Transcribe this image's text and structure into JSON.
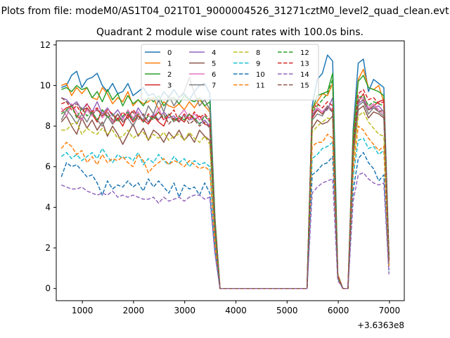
{
  "chart_data": {
    "type": "line",
    "suptitle": "Plots from file: modeM0/AS1T04_021T01_9000004526_31271cztM0_level2_quad_clean.evt",
    "title": "Quadrant 2 module wise count rates with 100.0s bins.",
    "xlabel": "",
    "ylabel": "",
    "x_offset_label": "+3.6363e8",
    "xlim": [
      490,
      7290
    ],
    "ylim": [
      -0.6,
      12.2
    ],
    "xticks": [
      1000,
      2000,
      3000,
      4000,
      5000,
      6000,
      7000
    ],
    "xtick_labels": [
      "1000",
      "2000",
      "3000",
      "4000",
      "5000",
      "6000",
      "7000"
    ],
    "yticks": [
      0,
      2,
      4,
      6,
      8,
      10,
      12
    ],
    "ytick_labels": [
      "0",
      "2",
      "4",
      "6",
      "8",
      "10",
      "12"
    ],
    "x": [
      590,
      690,
      790,
      890,
      990,
      1090,
      1190,
      1290,
      1390,
      1490,
      1590,
      1690,
      1790,
      1890,
      1990,
      2090,
      2190,
      2290,
      2390,
      2490,
      2590,
      2690,
      2790,
      2890,
      2990,
      3090,
      3190,
      3290,
      3390,
      3490,
      3590,
      3690,
      3790,
      3890,
      3990,
      4090,
      4190,
      4290,
      4390,
      4490,
      4590,
      4690,
      4790,
      4890,
      4990,
      5090,
      5190,
      5290,
      5390,
      5490,
      5590,
      5690,
      5790,
      5890,
      5990,
      6090,
      6190,
      6290,
      6390,
      6490,
      6590,
      6690,
      6790,
      6890,
      6990
    ],
    "legend": {
      "columns": 4,
      "location": "upper center"
    },
    "series": [
      {
        "name": "0",
        "color": "#1f77b4",
        "dash": "solid",
        "values": [
          9.9,
          10.0,
          10.5,
          10.7,
          9.9,
          10.3,
          10.4,
          10.6,
          10.0,
          9.7,
          10.1,
          9.6,
          9.7,
          10.1,
          9.5,
          9.7,
          9.9,
          9.5,
          9.6,
          9.2,
          9.7,
          9.4,
          9.8,
          9.4,
          9.6,
          9.3,
          9.7,
          10.0,
          10.1,
          9.6,
          3.5,
          0,
          0,
          0,
          0,
          0,
          0,
          0,
          0,
          0,
          0,
          0,
          0,
          0,
          0,
          0,
          0,
          0,
          0,
          9.0,
          10.3,
          10.6,
          11.5,
          11.2,
          0.7,
          0,
          0,
          7.8,
          11.1,
          11.3,
          9.7,
          10.3,
          10.1,
          9.9,
          1.6
        ]
      },
      {
        "name": "1",
        "color": "#ff7f0e",
        "dash": "solid",
        "values": [
          10.0,
          10.1,
          9.5,
          9.9,
          9.6,
          9.9,
          9.4,
          9.3,
          9.9,
          9.6,
          9.1,
          9.4,
          9.2,
          9.7,
          9.0,
          9.3,
          9.1,
          9.2,
          9.4,
          8.8,
          9.2,
          9.0,
          8.9,
          9.1,
          8.8,
          9.2,
          8.9,
          9.3,
          9.0,
          8.7,
          3.4,
          0,
          0,
          0,
          0,
          0,
          0,
          0,
          0,
          0,
          0,
          0,
          0,
          0,
          0,
          0,
          0,
          0,
          0,
          8.9,
          9.2,
          9.6,
          9.5,
          10.1,
          0.7,
          0,
          0,
          7.5,
          10.3,
          10.8,
          9.9,
          9.8,
          10.0,
          9.2,
          1.5
        ]
      },
      {
        "name": "2",
        "color": "#2ca02c",
        "dash": "solid",
        "values": [
          9.8,
          9.9,
          9.7,
          10.0,
          9.8,
          9.9,
          9.4,
          9.7,
          9.2,
          9.8,
          9.3,
          9.6,
          9.0,
          9.5,
          9.1,
          9.3,
          9.0,
          9.4,
          9.2,
          9.5,
          9.0,
          9.3,
          9.4,
          9.1,
          9.5,
          9.3,
          9.2,
          9.4,
          9.0,
          9.2,
          3.4,
          0,
          0,
          0,
          0,
          0,
          0,
          0,
          0,
          0,
          0,
          0,
          0,
          0,
          0,
          0,
          0,
          0,
          0,
          8.8,
          9.5,
          9.6,
          9.7,
          10.6,
          0.6,
          0,
          0,
          7.4,
          10.2,
          10.5,
          9.9,
          9.8,
          9.7,
          9.5,
          1.5
        ]
      },
      {
        "name": "3",
        "color": "#d62728",
        "dash": "solid",
        "values": [
          8.7,
          8.9,
          9.0,
          8.5,
          8.3,
          8.9,
          8.6,
          8.2,
          8.8,
          8.5,
          8.1,
          8.4,
          8.0,
          8.6,
          8.2,
          8.5,
          8.3,
          8.1,
          8.5,
          8.2,
          8.0,
          8.6,
          8.3,
          8.4,
          8.2,
          8.6,
          8.3,
          8.5,
          8.1,
          8.0,
          3.0,
          0,
          0,
          0,
          0,
          0,
          0,
          0,
          0,
          0,
          0,
          0,
          0,
          0,
          0,
          0,
          0,
          0,
          0,
          8.4,
          8.8,
          8.6,
          9.0,
          8.7,
          0.6,
          0,
          0,
          6.7,
          9.2,
          9.6,
          8.8,
          9.0,
          9.2,
          9.3,
          1.4
        ]
      },
      {
        "name": "4",
        "color": "#9467bd",
        "dash": "solid",
        "values": [
          9.4,
          9.3,
          9.0,
          9.2,
          8.8,
          9.1,
          8.7,
          9.2,
          8.6,
          8.9,
          8.5,
          8.8,
          8.4,
          8.7,
          8.3,
          8.9,
          8.5,
          8.2,
          8.6,
          8.3,
          8.7,
          8.4,
          8.5,
          8.2,
          8.6,
          8.3,
          8.4,
          8.1,
          8.3,
          8.0,
          3.0,
          0,
          0,
          0,
          0,
          0,
          0,
          0,
          0,
          0,
          0,
          0,
          0,
          0,
          0,
          0,
          0,
          0,
          0,
          8.5,
          8.9,
          8.7,
          8.8,
          9.4,
          0.6,
          0,
          0,
          6.6,
          9.1,
          9.3,
          8.8,
          8.9,
          9.0,
          8.7,
          1.4
        ]
      },
      {
        "name": "5",
        "color": "#8c564b",
        "dash": "solid",
        "values": [
          8.2,
          8.5,
          8.0,
          7.6,
          8.4,
          7.9,
          8.3,
          7.8,
          8.2,
          7.5,
          8.0,
          7.6,
          7.1,
          7.6,
          8.1,
          7.5,
          7.9,
          7.3,
          7.8,
          7.6,
          7.2,
          7.7,
          7.4,
          7.8,
          7.3,
          7.6,
          7.2,
          7.8,
          7.5,
          7.3,
          2.8,
          0,
          0,
          0,
          0,
          0,
          0,
          0,
          0,
          0,
          0,
          0,
          0,
          0,
          0,
          0,
          0,
          0,
          0,
          7.9,
          8.3,
          8.1,
          8.2,
          8.5,
          0.6,
          0,
          0,
          6.4,
          8.8,
          9.0,
          8.4,
          8.7,
          8.6,
          8.4,
          1.3
        ]
      },
      {
        "name": "6",
        "color": "#e377c2",
        "dash": "solid",
        "values": [
          8.9,
          8.5,
          9.1,
          8.7,
          8.3,
          8.8,
          8.5,
          8.9,
          8.4,
          8.7,
          8.2,
          8.6,
          8.3,
          8.8,
          8.4,
          8.7,
          8.2,
          8.5,
          8.4,
          8.9,
          8.3,
          8.6,
          8.2,
          8.5,
          8.8,
          8.4,
          8.6,
          8.3,
          8.5,
          8.2,
          3.0,
          0,
          0,
          0,
          0,
          0,
          0,
          0,
          0,
          0,
          0,
          0,
          0,
          0,
          0,
          0,
          0,
          0,
          0,
          8.6,
          8.9,
          8.7,
          9.0,
          8.8,
          0.6,
          0,
          0,
          6.8,
          9.3,
          9.4,
          8.9,
          9.1,
          8.8,
          8.6,
          1.4
        ]
      },
      {
        "name": "7",
        "color": "#7f7f7f",
        "dash": "solid",
        "values": [
          8.3,
          8.8,
          8.5,
          8.1,
          8.6,
          8.2,
          8.7,
          8.3,
          8.0,
          8.5,
          8.1,
          8.6,
          8.2,
          8.4,
          8.0,
          8.5,
          8.3,
          9.0,
          8.6,
          9.3,
          8.7,
          9.5,
          9.0,
          9.4,
          9.7,
          10.4,
          9.6,
          9.0,
          9.3,
          8.8,
          3.2,
          0,
          0,
          0,
          0,
          0,
          0,
          0,
          0,
          0,
          0,
          0,
          0,
          0,
          0,
          0,
          0,
          0,
          0,
          8.3,
          8.6,
          8.5,
          9.0,
          8.7,
          0.6,
          0,
          0,
          6.6,
          9.0,
          9.2,
          8.6,
          8.9,
          8.7,
          8.5,
          1.4
        ]
      },
      {
        "name": "8",
        "color": "#bcbd22",
        "dash": "dashed",
        "values": [
          7.8,
          7.8,
          8.1,
          8.2,
          7.6,
          7.9,
          7.7,
          7.6,
          7.9,
          7.6,
          7.8,
          7.4,
          7.5,
          7.8,
          7.4,
          7.6,
          7.7,
          7.3,
          7.6,
          7.4,
          7.7,
          7.3,
          7.5,
          7.6,
          7.3,
          7.7,
          7.4,
          7.2,
          7.5,
          7.1,
          2.7,
          0,
          0,
          0,
          0,
          0,
          0,
          0,
          0,
          0,
          0,
          0,
          0,
          0,
          0,
          0,
          0,
          0,
          0,
          7.7,
          8.0,
          8.2,
          8.4,
          8.3,
          0.6,
          0,
          0,
          6.2,
          8.5,
          8.7,
          8.2,
          7.9,
          7.6,
          7.5,
          1.2
        ]
      },
      {
        "name": "9",
        "color": "#17becf",
        "dash": "dashed",
        "values": [
          6.5,
          6.7,
          6.4,
          6.6,
          6.3,
          6.5,
          6.7,
          6.4,
          6.9,
          6.5,
          6.2,
          6.6,
          6.4,
          6.5,
          6.3,
          6.7,
          6.1,
          6.4,
          6.2,
          6.6,
          6.3,
          6.1,
          6.5,
          6.2,
          6.4,
          6.0,
          6.3,
          6.1,
          6.2,
          6.0,
          2.2,
          0,
          0,
          0,
          0,
          0,
          0,
          0,
          0,
          0,
          0,
          0,
          0,
          0,
          0,
          0,
          0,
          0,
          0,
          6.4,
          6.6,
          6.9,
          7.0,
          7.2,
          0.5,
          0,
          0,
          5.5,
          7.3,
          7.4,
          6.9,
          7.0,
          6.6,
          6.8,
          1.1
        ]
      },
      {
        "name": "10",
        "color": "#1f77b4",
        "dash": "dashed",
        "values": [
          5.5,
          6.2,
          6.0,
          6.1,
          5.8,
          5.5,
          5.6,
          5.2,
          4.6,
          5.3,
          4.9,
          5.1,
          5.0,
          5.3,
          5.0,
          5.2,
          4.8,
          5.4,
          5.0,
          5.3,
          5.0,
          4.7,
          5.2,
          4.5,
          5.1,
          4.9,
          5.0,
          4.6,
          5.2,
          4.7,
          1.8,
          0,
          0,
          0,
          0,
          0,
          0,
          0,
          0,
          0,
          0,
          0,
          0,
          0,
          0,
          0,
          0,
          0,
          0,
          5.6,
          5.8,
          6.1,
          6.2,
          6.5,
          0.5,
          0,
          0,
          4.8,
          6.4,
          6.7,
          6.2,
          5.9,
          5.3,
          5.6,
          0.9
        ]
      },
      {
        "name": "11",
        "color": "#ff7f0e",
        "dash": "dashed",
        "values": [
          6.9,
          7.2,
          7.0,
          6.6,
          6.8,
          6.2,
          6.5,
          6.1,
          6.6,
          6.2,
          6.4,
          6.3,
          6.5,
          6.2,
          6.0,
          6.6,
          6.3,
          5.7,
          6.0,
          6.2,
          6.4,
          6.1,
          6.3,
          6.2,
          6.0,
          6.3,
          6.1,
          5.9,
          6.0,
          5.8,
          2.2,
          0,
          0,
          0,
          0,
          0,
          0,
          0,
          0,
          0,
          0,
          0,
          0,
          0,
          0,
          0,
          0,
          0,
          0,
          7.0,
          7.2,
          7.2,
          7.6,
          7.4,
          0.5,
          0,
          0,
          5.8,
          8.0,
          7.8,
          7.4,
          7.1,
          6.8,
          7.0,
          1.1
        ]
      },
      {
        "name": "12",
        "color": "#2ca02c",
        "dash": "dashed",
        "values": [
          8.6,
          8.8,
          9.0,
          8.4,
          8.9,
          8.5,
          8.7,
          8.3,
          8.8,
          8.4,
          8.6,
          8.2,
          8.5,
          8.7,
          8.3,
          8.6,
          8.2,
          8.5,
          8.3,
          8.7,
          8.4,
          8.6,
          8.2,
          8.5,
          8.3,
          8.6,
          8.4,
          8.1,
          8.5,
          8.2,
          3.1,
          0,
          0,
          0,
          0,
          0,
          0,
          0,
          0,
          0,
          0,
          0,
          0,
          0,
          0,
          0,
          0,
          0,
          0,
          8.7,
          9.0,
          9.3,
          9.6,
          10.3,
          0.6,
          0,
          0,
          6.9,
          9.4,
          9.5,
          9.0,
          9.2,
          9.1,
          9.0,
          1.4
        ]
      },
      {
        "name": "13",
        "color": "#d62728",
        "dash": "dashed",
        "values": [
          9.1,
          9.2,
          8.8,
          9.0,
          8.6,
          9.1,
          8.7,
          8.9,
          8.5,
          8.8,
          8.6,
          8.3,
          8.7,
          8.4,
          8.8,
          8.5,
          8.2,
          8.6,
          8.4,
          8.7,
          8.3,
          8.5,
          8.8,
          8.2,
          8.6,
          8.3,
          8.7,
          8.4,
          8.6,
          8.3,
          3.1,
          0,
          0,
          0,
          0,
          0,
          0,
          0,
          0,
          0,
          0,
          0,
          0,
          0,
          0,
          0,
          0,
          0,
          0,
          8.8,
          9.1,
          8.9,
          9.2,
          9.0,
          0.6,
          0,
          0,
          7.0,
          9.6,
          9.8,
          9.3,
          9.4,
          9.1,
          9.2,
          1.4
        ]
      },
      {
        "name": "14",
        "color": "#9467bd",
        "dash": "dashed",
        "values": [
          5.1,
          5.0,
          4.9,
          4.9,
          5.0,
          4.8,
          4.7,
          4.6,
          4.7,
          4.6,
          4.8,
          4.5,
          4.6,
          4.5,
          4.6,
          4.5,
          4.4,
          4.4,
          4.5,
          4.2,
          4.5,
          4.3,
          4.4,
          4.5,
          4.3,
          4.5,
          4.6,
          4.6,
          4.4,
          4.5,
          1.7,
          0,
          0,
          0,
          0,
          0,
          0,
          0,
          0,
          0,
          0,
          0,
          0,
          0,
          0,
          0,
          0,
          0,
          0,
          4.7,
          5.0,
          5.2,
          5.3,
          5.4,
          0.4,
          0,
          0,
          4.3,
          5.6,
          5.7,
          5.4,
          5.2,
          5.1,
          5.2,
          0.7
        ]
      },
      {
        "name": "15",
        "color": "#8c564b",
        "dash": "dashed",
        "values": [
          9.4,
          9.2,
          9.0,
          9.1,
          8.8,
          8.9,
          8.6,
          8.8,
          8.5,
          8.7,
          8.3,
          8.6,
          8.2,
          8.5,
          8.7,
          8.3,
          8.6,
          8.2,
          8.5,
          8.3,
          8.6,
          8.1,
          8.4,
          8.2,
          8.5,
          8.1,
          8.3,
          8.0,
          8.2,
          7.9,
          2.9,
          0,
          0,
          0,
          0,
          0,
          0,
          0,
          0,
          0,
          0,
          0,
          0,
          0,
          0,
          0,
          0,
          0,
          0,
          8.5,
          8.8,
          8.6,
          8.9,
          8.7,
          0.6,
          0,
          0,
          6.7,
          9.2,
          9.3,
          8.8,
          9.0,
          8.7,
          8.8,
          1.3
        ]
      }
    ]
  }
}
